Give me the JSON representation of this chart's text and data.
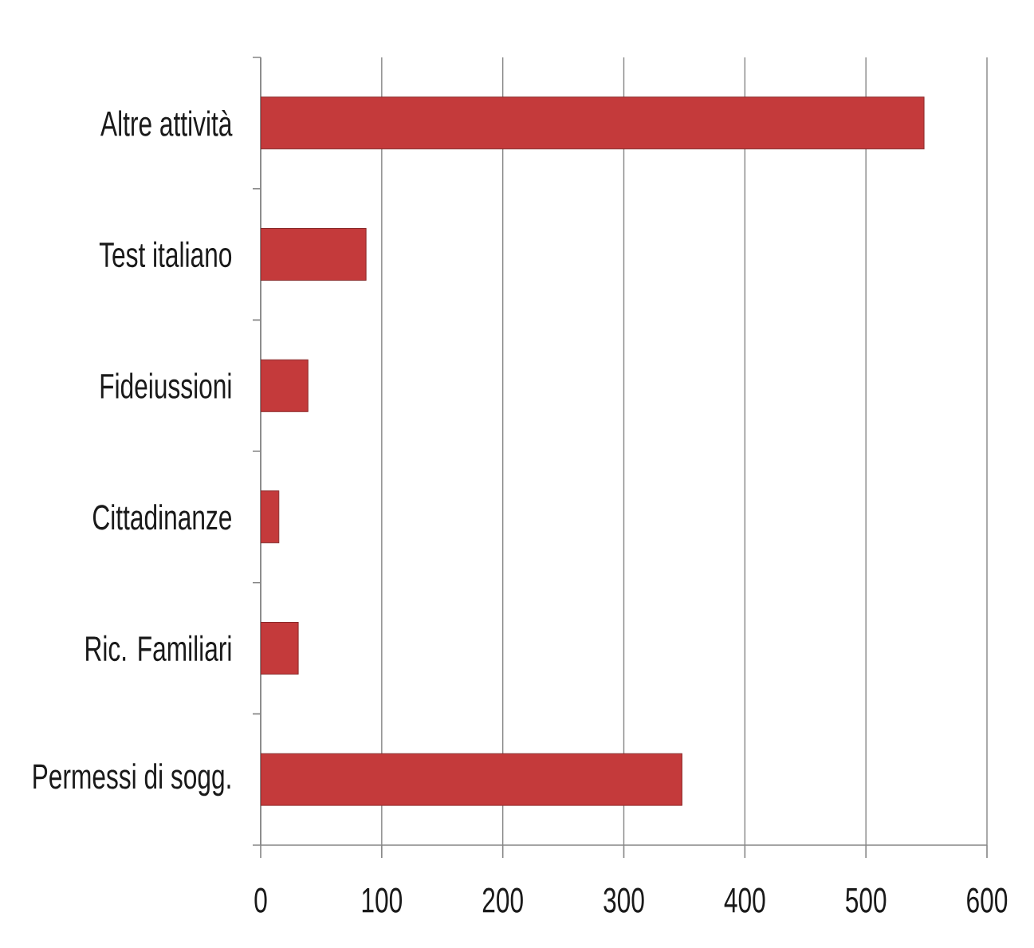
{
  "chart_data": {
    "type": "bar",
    "orientation": "horizontal",
    "categories": [
      "Altre attività",
      "Test italiano",
      "Fideiussioni",
      "Cittadinanze",
      "Ric. Familiari",
      "Permessi di sogg."
    ],
    "values": [
      548,
      87,
      39,
      15,
      31,
      348
    ],
    "color": "#c43a3b",
    "xlim": [
      0,
      600
    ],
    "xticks": [
      0,
      100,
      200,
      300,
      400,
      500,
      600
    ],
    "grid": "x"
  }
}
